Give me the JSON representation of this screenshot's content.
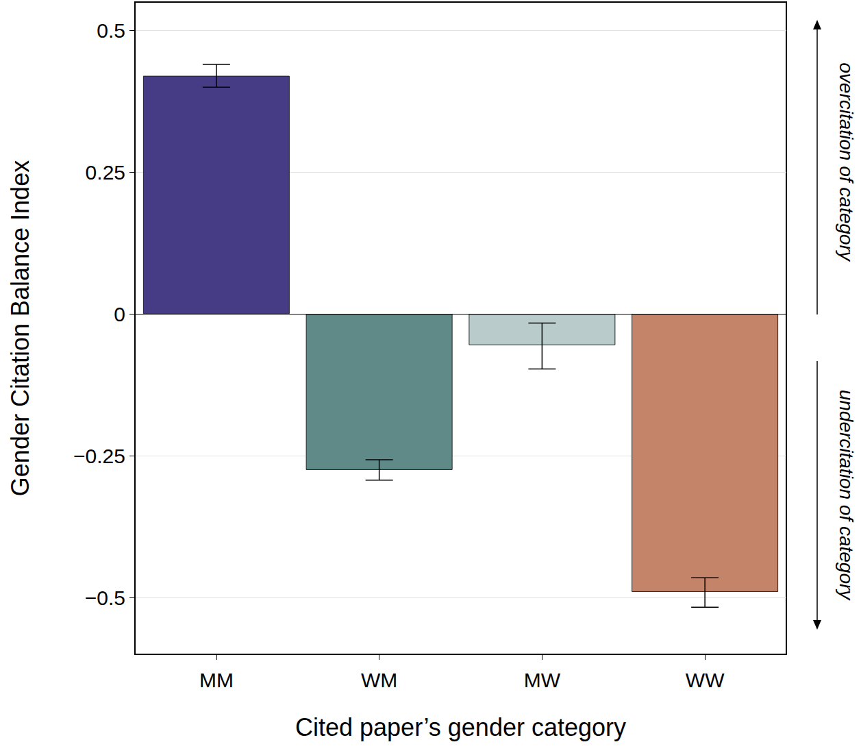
{
  "chart_data": {
    "type": "bar",
    "x_label": "Cited paper’s gender category",
    "y_label": "Gender Citation Balance Index",
    "categories": [
      "MM",
      "WM",
      "MW",
      "WW"
    ],
    "values": [
      0.42,
      -0.275,
      -0.055,
      -0.49
    ],
    "colors": [
      "#463c85",
      "#5f8a87",
      "#b9cccb",
      "#c3846a"
    ],
    "error_bars": {
      "lower": [
        0.4,
        -0.293,
        -0.097,
        -0.517
      ],
      "upper": [
        0.44,
        -0.257,
        -0.016,
        -0.465
      ]
    },
    "ylim": [
      -0.6,
      0.55
    ],
    "yticks": [
      {
        "value": -0.5,
        "label": "−0.5"
      },
      {
        "value": -0.25,
        "label": "−0.25"
      },
      0,
      0.25,
      0.5
    ],
    "annotations": [
      "overcitation of category",
      "undercitation of category"
    ],
    "grid": true
  }
}
